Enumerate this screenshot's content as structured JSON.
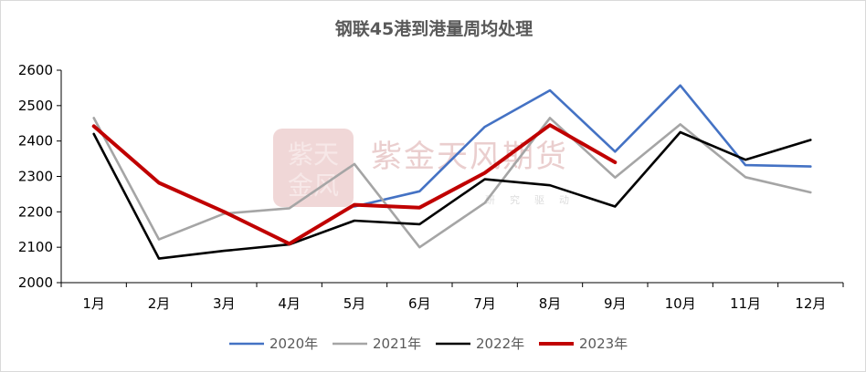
{
  "chart_data": {
    "type": "line",
    "title": "钢联45港到港量周均处理",
    "xlabel": "",
    "ylabel": "",
    "categories": [
      "1月",
      "2月",
      "3月",
      "4月",
      "5月",
      "6月",
      "7月",
      "8月",
      "9月",
      "10月",
      "11月",
      "12月"
    ],
    "ylim": [
      2000,
      2600
    ],
    "yticks": [
      2000,
      2100,
      2200,
      2300,
      2400,
      2500,
      2600
    ],
    "grid": false,
    "legend_position": "bottom",
    "series": [
      {
        "name": "2020年",
        "color": "#4472C4",
        "values": [
          2420,
          null,
          null,
          null,
          2215,
          2258,
          2440,
          2543,
          2370,
          2557,
          2332,
          2328
        ]
      },
      {
        "name": "2021年",
        "color": "#A5A5A5",
        "values": [
          2465,
          2122,
          2195,
          2210,
          2335,
          2100,
          2225,
          2465,
          2297,
          2447,
          2298,
          2255
        ]
      },
      {
        "name": "2022年",
        "color": "#000000",
        "values": [
          2420,
          2068,
          2090,
          2108,
          2175,
          2165,
          2292,
          2275,
          2215,
          2425,
          2347,
          2403
        ]
      },
      {
        "name": "2023年",
        "color": "#C00000",
        "values": [
          2442,
          2282,
          2200,
          2110,
          2220,
          2212,
          2310,
          2445,
          2340,
          null,
          null,
          null
        ]
      }
    ]
  },
  "watermark": {
    "logo_text": "紫天\n金风",
    "company": "紫金天风期货",
    "slogan": "研究驱动"
  }
}
